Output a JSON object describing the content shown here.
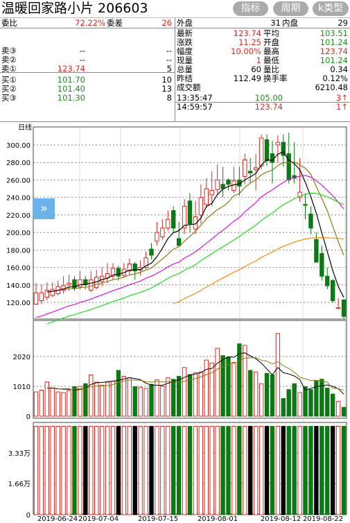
{
  "header": {
    "title": "温暖回家路小片 206603",
    "buttons": [
      "指标",
      "周期",
      "k类型"
    ]
  },
  "quote": {
    "left": {
      "ratio_label": "委比",
      "ratio_value": "72.22%",
      "diff_label": "委差",
      "diff_value": "26",
      "asks": [
        {
          "label": "卖③",
          "price": "--",
          "vol": "--"
        },
        {
          "label": "卖②",
          "price": "--",
          "vol": "--"
        },
        {
          "label": "卖①",
          "price": "123.74",
          "vol": "5"
        }
      ],
      "bids": [
        {
          "label": "买①",
          "price": "101.70",
          "vol": "10"
        },
        {
          "label": "买②",
          "price": "101.40",
          "vol": "13"
        },
        {
          "label": "买③",
          "price": "101.30",
          "vol": "8"
        }
      ]
    },
    "right": {
      "outer_label": "外盘",
      "outer_value": "31",
      "inner_label": "内盘",
      "inner_value": "29",
      "rows": [
        {
          "l1": "最新",
          "v1": "123.74",
          "l2": "平均",
          "v2": "103.51"
        },
        {
          "l1": "涨跌",
          "v1": "11.25",
          "l2": "开盘",
          "v2": "101.24"
        },
        {
          "l1": "幅度",
          "v1": "10.00%",
          "l2": "最高",
          "v2": "123.74"
        },
        {
          "l1": "现量",
          "v1": "1",
          "l2": "最低",
          "v2": "101.24"
        },
        {
          "l1": "总量",
          "v1": "60",
          "l2": "量比",
          "v2": "0.34"
        },
        {
          "l1": "昨结",
          "v1": "112.49",
          "l2": "换手率",
          "v2": "0.12%"
        }
      ],
      "turnover_label": "成交额",
      "turnover_value": "6210.48",
      "ticks": [
        {
          "time": "13:35:47",
          "price": "105.00",
          "vol": "3↑"
        },
        {
          "time": "14:59:57",
          "price": "123.74",
          "vol": "1↑"
        }
      ]
    }
  },
  "chart_data": {
    "type": "candlestick",
    "period_label": "日线",
    "price_ticks": [
      "300.00",
      "280.00",
      "260.00",
      "240.00",
      "220.00",
      "200.00",
      "180.00",
      "160.00",
      "140.00",
      "120.00"
    ],
    "vol_ticks": [
      "2020",
      "1010",
      "0"
    ],
    "amount_ticks": [
      "3.33万",
      "1.66万",
      "0"
    ],
    "dates": [
      "2019-06-24",
      "2019-07-04",
      "2019-07-15",
      "2019-08-01",
      "2019-08-12",
      "2019-08-22"
    ],
    "colors": {
      "up": "#e8231b",
      "down": "#0a7a12",
      "ma5": "#000000",
      "ma10": "#8a7a10",
      "ma20": "#e010e0",
      "ma30": "#22dd22",
      "ma60": "#ff8800"
    },
    "candles": [
      [
        118,
        131,
        142,
        118
      ],
      [
        122,
        131,
        140,
        118
      ],
      [
        126,
        134,
        143,
        122
      ],
      [
        128,
        135,
        143,
        126
      ],
      [
        130,
        138,
        145,
        128
      ],
      [
        134,
        139,
        150,
        130
      ],
      [
        140,
        142,
        152,
        133
      ],
      [
        146,
        136,
        150,
        133
      ],
      [
        138,
        146,
        156,
        135
      ],
      [
        146,
        140,
        150,
        135
      ],
      [
        134,
        146,
        156,
        132
      ],
      [
        137,
        149,
        157,
        135
      ],
      [
        144,
        150,
        160,
        138
      ],
      [
        148,
        153,
        165,
        142
      ],
      [
        150,
        159,
        165,
        146
      ],
      [
        159,
        150,
        162,
        145
      ],
      [
        151,
        158,
        165,
        148
      ],
      [
        156,
        164,
        170,
        152
      ],
      [
        164,
        156,
        166,
        146
      ],
      [
        157,
        160,
        168,
        151
      ],
      [
        160,
        171,
        178,
        158
      ],
      [
        181,
        174,
        188,
        169
      ],
      [
        190,
        200,
        212,
        185
      ],
      [
        195,
        205,
        215,
        192
      ],
      [
        205,
        215,
        225,
        202
      ],
      [
        225,
        205,
        230,
        200
      ],
      [
        193,
        185,
        212,
        186
      ],
      [
        205,
        230,
        238,
        198
      ],
      [
        236,
        210,
        245,
        200
      ],
      [
        204,
        218,
        236,
        198
      ],
      [
        220,
        240,
        255,
        210
      ],
      [
        232,
        250,
        262,
        228
      ],
      [
        243,
        248,
        270,
        230
      ],
      [
        249,
        260,
        278,
        243
      ],
      [
        255,
        250,
        275,
        240
      ],
      [
        260,
        255,
        262,
        248
      ],
      [
        248,
        259,
        275,
        245
      ],
      [
        260,
        253,
        275,
        242
      ],
      [
        264,
        283,
        290,
        255
      ],
      [
        270,
        268,
        285,
        256
      ],
      [
        272,
        274,
        290,
        248
      ],
      [
        276,
        308,
        312,
        272
      ],
      [
        306,
        282,
        312,
        276
      ],
      [
        290,
        280,
        305,
        256
      ],
      [
        300,
        303,
        311,
        280
      ],
      [
        303,
        288,
        312,
        275
      ],
      [
        290,
        260,
        314,
        256
      ],
      [
        265,
        262,
        303,
        256
      ],
      [
        240,
        246,
        285,
        235
      ],
      [
        232,
        231,
        245,
        215
      ],
      [
        221,
        205,
        230,
        198
      ],
      [
        192,
        166,
        200,
        168
      ],
      [
        176,
        150,
        185,
        145
      ],
      [
        150,
        139,
        160,
        135
      ],
      [
        145,
        122,
        147,
        120
      ],
      [
        113,
        114,
        125,
        112
      ],
      [
        123,
        104,
        118,
        101
      ]
    ],
    "volumes": [
      820,
      880,
      1160,
      950,
      820,
      800,
      870,
      1000,
      1010,
      1100,
      1400,
      1150,
      1050,
      1150,
      1180,
      1550,
      1350,
      1300,
      1000,
      980,
      940,
      1080,
      1230,
      1020,
      1300,
      1250,
      1350,
      1650,
      1410,
      1470,
      1500,
      1900,
      1800,
      2300,
      2050,
      2000,
      1820,
      2450,
      2400,
      1550,
      1500,
      1100,
      1450,
      1400,
      2800,
      600,
      900,
      1100,
      800,
      1000,
      900,
      1200,
      1250,
      950,
      750,
      500,
      300
    ],
    "amount_ratio": [
      0.98,
      0.98,
      0.98,
      0.98,
      0.98,
      0.98,
      0.98,
      0.98,
      0.98,
      0.98,
      0.98,
      0.98,
      0.98,
      0.98,
      0.98,
      0.98,
      0.98,
      0.98,
      0.98,
      0.98,
      0.98,
      0.98,
      0.98,
      0.98,
      0.98,
      0.98,
      0.98,
      0.98,
      0.98,
      0.98,
      0.98,
      0.98,
      0.98,
      0.98,
      0.98,
      0.98,
      0.98,
      0.98,
      0.98,
      0.98,
      0.98,
      0.98,
      0.98,
      0.98,
      0.98,
      0.98,
      0.98,
      0.98,
      0.98,
      0.98,
      0.98,
      0.98,
      0.98,
      0.98,
      0.98,
      0.98,
      0.98
    ]
  }
}
